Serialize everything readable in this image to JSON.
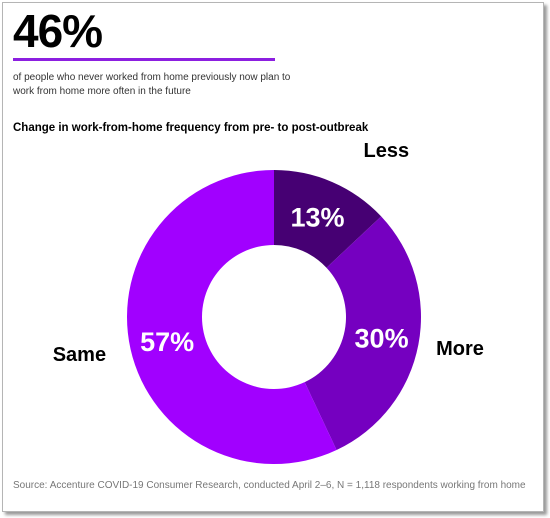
{
  "headline": {
    "stat": "46%",
    "description": "of people who never worked from home previously now plan to work from home more often in the future"
  },
  "chart_data": {
    "type": "pie",
    "title": "Change in work-from-home frequency from pre- to post-outbreak",
    "donut": true,
    "slices": [
      {
        "label": "Less",
        "value": 13,
        "display": "13%",
        "color": "#460073"
      },
      {
        "label": "More",
        "value": 30,
        "display": "30%",
        "color": "#7500c0"
      },
      {
        "label": "Same",
        "value": 57,
        "display": "57%",
        "color": "#a100ff"
      }
    ]
  },
  "accent_color": "#8c1fe0",
  "source": "Source: Accenture COVID-19 Consumer Research, conducted April 2–6, N = 1,118 respondents working from home"
}
